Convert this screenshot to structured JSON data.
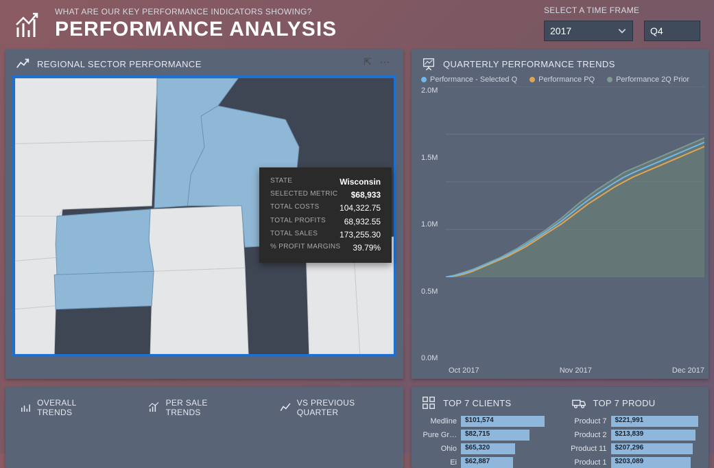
{
  "header": {
    "subtitle": "WHAT ARE OUR KEY PERFORMANCE INDICATORS SHOWING?",
    "title": "PERFORMANCE ANALYSIS"
  },
  "timeframe": {
    "label": "SELECT A TIME FRAME",
    "year_selected": "2017",
    "quarter_selected": "Q4"
  },
  "map_panel": {
    "title": "REGIONAL SECTOR PERFORMANCE",
    "selected_states_color": "#8fb7d6",
    "unselected_states_color": "#e5e6e8",
    "water_color": "#3f4653",
    "border_color": "#1f6fd0",
    "tooltip": {
      "rows": [
        {
          "label": "STATE",
          "value": "Wisconsin",
          "bold": true
        },
        {
          "label": "SELECTED METRIC",
          "value": "$68,933",
          "bold": true
        },
        {
          "label": "TOTAL COSTS",
          "value": "104,322.75",
          "bold": false
        },
        {
          "label": "TOTAL PROFITS",
          "value": "68,932.55",
          "bold": false
        },
        {
          "label": "TOTAL SALES",
          "value": "173,255.30",
          "bold": false
        },
        {
          "label": "% PROFIT MARGINS",
          "value": "39.79%",
          "bold": false
        }
      ]
    }
  },
  "trends_panel": {
    "title": "QUARTERLY PERFORMANCE TRENDS",
    "legend": [
      {
        "label": "Performance - Selected Q",
        "color": "#6fb8e8"
      },
      {
        "label": "Performance PQ",
        "color": "#e0a553"
      },
      {
        "label": "Performance 2Q Prior",
        "color": "#7f9a92"
      }
    ],
    "chart": {
      "type": "area",
      "ylim": [
        0,
        2000000
      ],
      "yticks": [
        "2.0M",
        "1.5M",
        "1.0M",
        "0.5M",
        "0.0M"
      ],
      "xticks": [
        "Oct 2017",
        "Nov 2017",
        "Dec 2017"
      ],
      "background_color": "#596476",
      "grid_color": "#6b7586",
      "series": [
        {
          "name": "Performance 2Q Prior",
          "stroke": "#7f9a92",
          "fill": "#6b8078",
          "fill_opacity": 0.65,
          "points": [
            0,
            0.02,
            0.05,
            0.08,
            0.12,
            0.16,
            0.2,
            0.25,
            0.3,
            0.36,
            0.42,
            0.48,
            0.55,
            0.62,
            0.7,
            0.78,
            0.85,
            0.92,
            0.98,
            1.04,
            1.1,
            1.14,
            1.18,
            1.22,
            1.26,
            1.3,
            1.34,
            1.38,
            1.42,
            1.46
          ]
        },
        {
          "name": "Performance PQ",
          "stroke": "#e0a553",
          "fill": "none",
          "points": [
            0,
            0.01,
            0.03,
            0.06,
            0.1,
            0.14,
            0.18,
            0.22,
            0.27,
            0.32,
            0.38,
            0.44,
            0.5,
            0.56,
            0.63,
            0.7,
            0.77,
            0.83,
            0.89,
            0.95,
            1.0,
            1.05,
            1.09,
            1.13,
            1.17,
            1.21,
            1.25,
            1.29,
            1.33,
            1.37
          ]
        },
        {
          "name": "Performance - Selected Q",
          "stroke": "#6fb8e8",
          "fill": "none",
          "points": [
            0,
            0.015,
            0.04,
            0.07,
            0.11,
            0.15,
            0.19,
            0.235,
            0.285,
            0.34,
            0.4,
            0.46,
            0.525,
            0.59,
            0.665,
            0.74,
            0.81,
            0.875,
            0.935,
            0.995,
            1.05,
            1.095,
            1.135,
            1.175,
            1.215,
            1.255,
            1.295,
            1.335,
            1.375,
            1.415
          ]
        }
      ],
      "ymax_ref": 2.0
    }
  },
  "bottom_tabs": {
    "items": [
      {
        "label": "OVERALL TRENDS",
        "icon": "bar-trend"
      },
      {
        "label": "PER SALE TRENDS",
        "icon": "bar-up"
      },
      {
        "label": "VS PREVIOUS QUARTER",
        "icon": "line-trend"
      }
    ]
  },
  "top_clients": {
    "title": "TOP 7 CLIENTS",
    "bar_color": "#8fb7dc",
    "max": 110000,
    "rows": [
      {
        "name": "Medline",
        "value": 101574,
        "display": "$101,574"
      },
      {
        "name": "Pure Gr…",
        "value": 82715,
        "display": "$82,715"
      },
      {
        "name": "Ohio",
        "value": 65320,
        "display": "$65,320"
      },
      {
        "name": "Ei",
        "value": 62887,
        "display": "$62,887"
      }
    ]
  },
  "top_products": {
    "title": "TOP 7 PRODU",
    "bar_color": "#8fb7dc",
    "max": 230000,
    "rows": [
      {
        "name": "Product 7",
        "value": 221991,
        "display": "$221,991"
      },
      {
        "name": "Product 2",
        "value": 213839,
        "display": "$213,839"
      },
      {
        "name": "Product 11",
        "value": 207296,
        "display": "$207,296"
      },
      {
        "name": "Product 1",
        "value": 203089,
        "display": "$203,089"
      }
    ]
  }
}
